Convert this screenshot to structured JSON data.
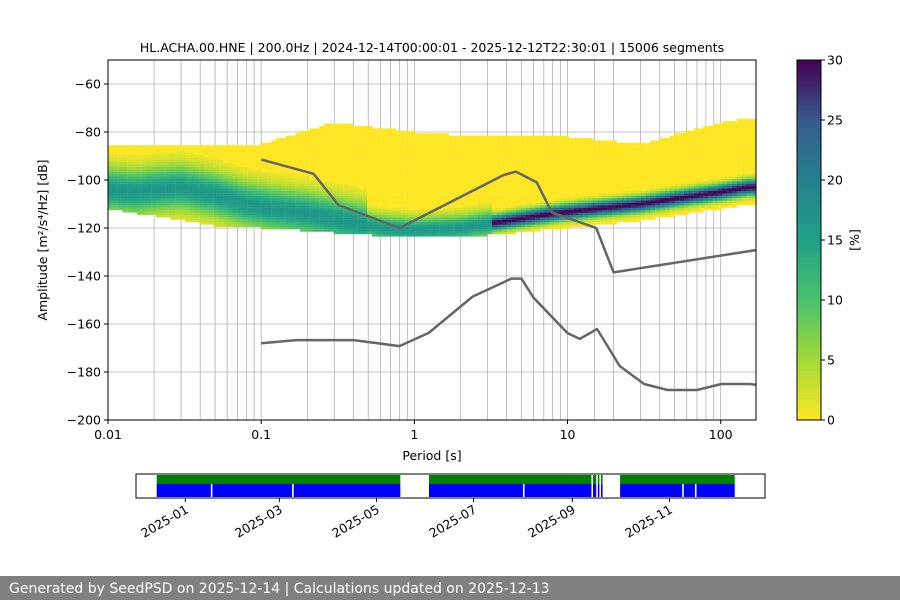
{
  "chart_data": [
    {
      "type": "heatmap",
      "title": "HL.ACHA.00.HNE | 200.0Hz | 2024-12-14T00:00:01 - 2025-12-12T22:30:01 | 15006 segments",
      "xlabel": "Period [s]",
      "ylabel": "Amplitude [m²/s⁴/Hz] [dB]",
      "x_scale": "log",
      "xlim": [
        0.01,
        170
      ],
      "ylim": [
        -200,
        -50
      ],
      "x_ticks": [
        {
          "value": 0.01,
          "label": "0.01"
        },
        {
          "value": 0.1,
          "label": "0.1"
        },
        {
          "value": 1,
          "label": "1"
        },
        {
          "value": 10,
          "label": "10"
        },
        {
          "value": 100,
          "label": "100"
        }
      ],
      "y_ticks": [
        -60,
        -80,
        -100,
        -120,
        -140,
        -160,
        -180,
        -200
      ],
      "grid": true,
      "grid_period_lines": [
        0.02,
        0.03,
        0.04,
        0.05,
        0.06,
        0.07,
        0.08,
        0.09,
        0.1,
        0.2,
        0.3,
        0.4,
        0.5,
        0.6,
        0.7,
        0.8,
        0.9,
        1,
        2,
        3,
        4,
        5,
        6,
        7,
        8,
        9,
        10,
        15,
        20,
        30,
        40,
        50,
        60,
        70,
        80,
        90,
        100
      ],
      "colorbar": {
        "label": "[%]",
        "range": [
          0,
          30
        ],
        "ticks": [
          0,
          5,
          10,
          15,
          20,
          25,
          30
        ],
        "colormap": "viridis_r"
      },
      "ppsd_mode": {
        "period": [
          0.01,
          0.015,
          0.02,
          0.03,
          0.05,
          0.08,
          0.12,
          0.2,
          0.35,
          0.6,
          1.0,
          2.0,
          4.0,
          8.0,
          15,
          30,
          60,
          100,
          150
        ],
        "amplitude": [
          -104,
          -105,
          -104,
          -103,
          -106,
          -110,
          -112,
          -114,
          -117,
          -120,
          -121,
          -120,
          -117,
          -114,
          -112,
          -110,
          -107,
          -105,
          -103
        ]
      },
      "ppsd_spread": {
        "period": [
          0.01,
          0.02,
          0.05,
          0.1,
          0.3,
          1.0,
          3.0,
          10,
          30,
          100,
          170
        ],
        "upper": [
          -86,
          -85,
          -86,
          -85,
          -76,
          -80,
          -82,
          -82,
          -85,
          -76,
          -74
        ],
        "lower": [
          -112,
          -115,
          -119,
          -120,
          -122,
          -124,
          -123,
          -120,
          -117,
          -112,
          -110
        ]
      },
      "noise_models": [
        {
          "period": [
            0.1,
            0.22,
            0.32,
            0.8,
            3.8,
            4.6,
            6.3,
            7.9,
            15.4,
            20,
            354.8
          ],
          "amplitude": [
            -91.5,
            -97.4,
            -110.5,
            -120.0,
            -98.0,
            -96.5,
            -101.0,
            -113.5,
            -120.0,
            -138.5,
            -126.0
          ]
        },
        {
          "period": [
            0.1,
            0.17,
            0.4,
            0.8,
            1.24,
            2.4,
            4.3,
            5.0,
            6.0,
            10.0,
            12.0,
            15.6,
            21.9,
            31.6,
            45.0,
            70.0,
            101.0,
            154.0,
            328.0
          ],
          "amplitude": [
            -168.0,
            -166.7,
            -166.7,
            -169.2,
            -163.7,
            -148.6,
            -141.1,
            -141.1,
            -149.0,
            -163.8,
            -166.2,
            -162.1,
            -177.5,
            -185.0,
            -187.5,
            -187.5,
            -185.0,
            -185.0,
            -187.5
          ]
        }
      ]
    },
    {
      "type": "timeline",
      "x_ticks": [
        "2025-01",
        "2025-03",
        "2025-05",
        "2025-07",
        "2025-09",
        "2025-11"
      ],
      "range": [
        "2024-12-01",
        "2025-12-31"
      ],
      "colors": {
        "available": "#008000",
        "processed": "#0000ff"
      },
      "available_segments": [
        [
          "2024-12-14",
          "2025-05-16"
        ],
        [
          "2025-06-03",
          "2025-09-13"
        ],
        [
          "2025-09-14",
          "2025-09-16"
        ],
        [
          "2025-09-17",
          "2025-09-18"
        ],
        [
          "2025-09-19",
          "2025-09-20"
        ],
        [
          "2025-10-01",
          "2025-12-12"
        ]
      ],
      "processed_segments": [
        [
          "2024-12-14",
          "2025-01-17"
        ],
        [
          "2025-01-18",
          "2025-03-09"
        ],
        [
          "2025-03-10",
          "2025-05-16"
        ],
        [
          "2025-06-03",
          "2025-08-01"
        ],
        [
          "2025-08-02",
          "2025-09-13"
        ],
        [
          "2025-09-14",
          "2025-09-16"
        ],
        [
          "2025-09-17",
          "2025-09-18"
        ],
        [
          "2025-09-19",
          "2025-09-20"
        ],
        [
          "2025-10-01",
          "2025-11-09"
        ],
        [
          "2025-11-10",
          "2025-11-17"
        ],
        [
          "2025-11-18",
          "2025-12-12"
        ]
      ]
    }
  ],
  "footer": {
    "text": "Generated by SeedPSD on 2025-12-14 | Calculations updated on 2025-12-13"
  }
}
